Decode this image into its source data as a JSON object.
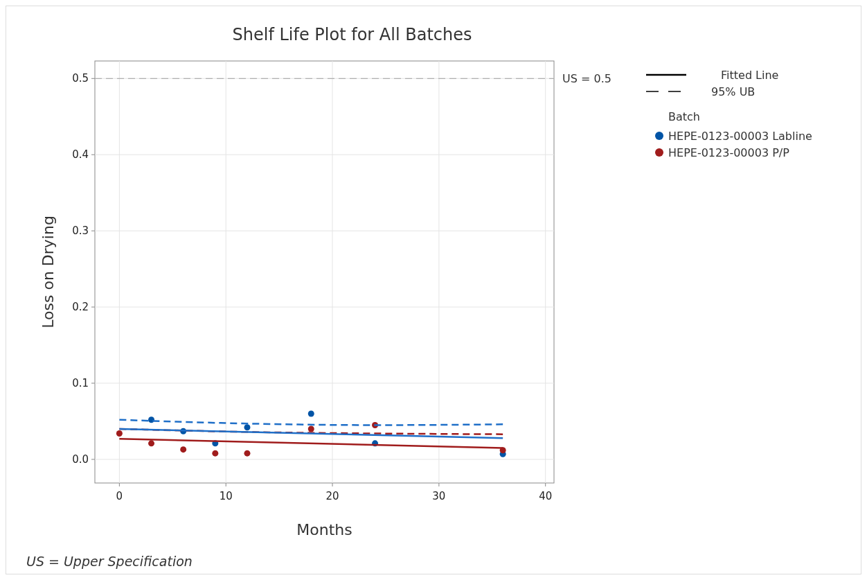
{
  "chart_data": {
    "type": "scatter",
    "title": "Shelf Life Plot for All Batches",
    "xlabel": "Months",
    "ylabel": "Loss on Drying",
    "legend_title": "Batch",
    "xlim": [
      -2.3,
      40.8
    ],
    "ylim": [
      -0.031,
      0.523
    ],
    "xticks": [
      0,
      10,
      20,
      30,
      40
    ],
    "yticks": [
      {
        "value": 0,
        "label": "0.0"
      },
      0.1,
      0.2,
      0.3,
      0.4,
      0.5
    ],
    "grid": true,
    "legend": "right",
    "marker": "circle",
    "series": [
      {
        "name": "HEPE-0123-00003 Labline",
        "color": "#0054a6",
        "x": [
          3,
          6,
          9,
          12,
          18,
          24,
          36
        ],
        "values": [
          0.052,
          0.037,
          0.021,
          0.042,
          0.06,
          0.021,
          0.007
        ]
      },
      {
        "name": "HEPE-0123-00003 P/P",
        "color": "#a01c1c",
        "x": [
          0,
          3,
          6,
          9,
          12,
          18,
          24,
          36
        ],
        "values": [
          0.034,
          0.021,
          0.013,
          0.008,
          0.008,
          0.04,
          0.045,
          0.012
        ]
      },
      {
        "type": "line",
        "color": "#a01c1c",
        "line_style": "dashed",
        "marker": "none",
        "x": [
          0,
          12,
          24,
          36
        ],
        "values": [
          0.04,
          0.036,
          0.034,
          0.033
        ]
      },
      {
        "type": "line",
        "color": "#1f6fc8",
        "line_style": "dashed",
        "marker": "none",
        "x": [
          0,
          12,
          24,
          36
        ],
        "values": [
          0.052,
          0.047,
          0.045,
          0.046
        ]
      },
      {
        "type": "line",
        "color": "#a01c1c",
        "line_style": "solid",
        "marker": "none",
        "x": [
          0,
          36
        ],
        "values": [
          0.027,
          0.015
        ]
      },
      {
        "type": "line",
        "color": "#1f6fc8",
        "line_style": "solid",
        "marker": "none",
        "x": [
          0,
          36
        ],
        "values": [
          0.04,
          0.028
        ]
      }
    ],
    "ref_lines": [
      {
        "axis": "y",
        "value": 0.5,
        "label": "US = 0.5",
        "color": "#a0a0a0",
        "line_style": "dashed"
      }
    ],
    "annotations": [
      "Fitted Line",
      "95% UB",
      "US = Upper Specification"
    ]
  }
}
